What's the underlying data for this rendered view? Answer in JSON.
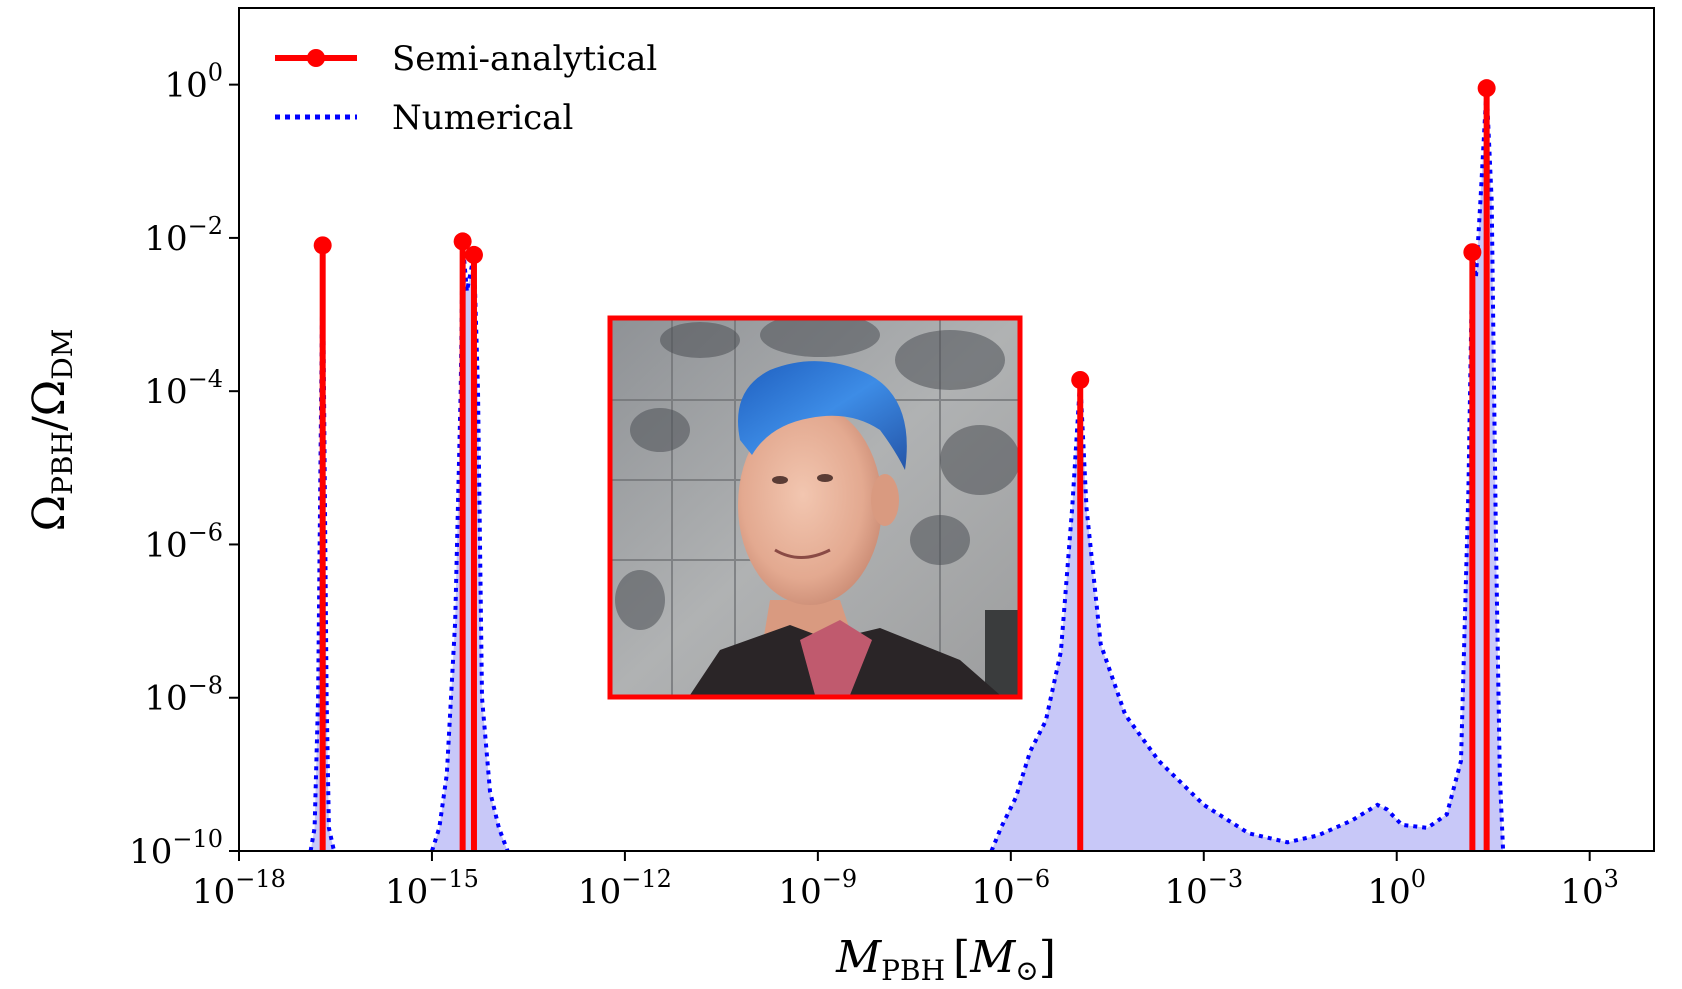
{
  "chart_data": {
    "type": "line",
    "xscale": "log",
    "yscale": "log",
    "xlim": [
      1e-18,
      10000.0
    ],
    "ylim": [
      1e-10,
      10
    ],
    "grid": false,
    "legend_position": "top-left",
    "xlabel": {
      "main": "M",
      "sub": "PBH",
      "unit_open": "[",
      "unit_main": "M",
      "unit_sub": "⊙",
      "unit_close": "]"
    },
    "ylabel": {
      "num_main": "Ω",
      "num_sub": "PBH",
      "slash": "/",
      "den_main": "Ω",
      "den_sub": "DM"
    },
    "x_ticks": [
      {
        "base": "10",
        "exp": "−18",
        "value": 1e-18
      },
      {
        "base": "10",
        "exp": "−15",
        "value": 1e-15
      },
      {
        "base": "10",
        "exp": "−12",
        "value": 1e-12
      },
      {
        "base": "10",
        "exp": "−9",
        "value": 1e-09
      },
      {
        "base": "10",
        "exp": "−6",
        "value": 1e-06
      },
      {
        "base": "10",
        "exp": "−3",
        "value": 0.001
      },
      {
        "base": "10",
        "exp": "0",
        "value": 1
      },
      {
        "base": "10",
        "exp": "3",
        "value": 1000.0
      }
    ],
    "y_ticks": [
      {
        "base": "10",
        "exp": "0",
        "value": 1
      },
      {
        "base": "10",
        "exp": "−2",
        "value": 0.01
      },
      {
        "base": "10",
        "exp": "−4",
        "value": 0.0001
      },
      {
        "base": "10",
        "exp": "−6",
        "value": 1e-06
      },
      {
        "base": "10",
        "exp": "−8",
        "value": 1e-08
      },
      {
        "base": "10",
        "exp": "−10",
        "value": 1e-10
      }
    ],
    "series": [
      {
        "name": "Semi-analytical",
        "style": "stem",
        "color": "#ff0000",
        "points": [
          {
            "x": 2e-17,
            "y": 0.008
          },
          {
            "x": 3e-15,
            "y": 0.009
          },
          {
            "x": 4.5e-15,
            "y": 0.006
          },
          {
            "x": 1.2e-05,
            "y": 0.00014
          },
          {
            "x": 15,
            "y": 0.0065
          },
          {
            "x": 25,
            "y": 0.9
          }
        ]
      },
      {
        "name": "Numerical",
        "style": "dotted-filled",
        "color": "#0000ff",
        "fill": "#c8c8f8",
        "points": [
          {
            "x": 1.3e-17,
            "y": 1e-10
          },
          {
            "x": 1.5e-17,
            "y": 2e-10
          },
          {
            "x": 1.7e-17,
            "y": 1e-08
          },
          {
            "x": 1.9e-17,
            "y": 0.0001
          },
          {
            "x": 2e-17,
            "y": 0.008
          },
          {
            "x": 2.1e-17,
            "y": 0.0001
          },
          {
            "x": 2.3e-17,
            "y": 1e-08
          },
          {
            "x": 2.5e-17,
            "y": 2e-10
          },
          {
            "x": 3e-17,
            "y": 1e-10
          },
          {
            "x": 1e-15,
            "y": 1e-10
          },
          {
            "x": 1.3e-15,
            "y": 2e-10
          },
          {
            "x": 1.7e-15,
            "y": 1e-09
          },
          {
            "x": 2.3e-15,
            "y": 1e-07
          },
          {
            "x": 2.8e-15,
            "y": 0.0001
          },
          {
            "x": 3e-15,
            "y": 0.009
          },
          {
            "x": 3.5e-15,
            "y": 0.002
          },
          {
            "x": 4.5e-15,
            "y": 0.006
          },
          {
            "x": 5.2e-15,
            "y": 0.0001
          },
          {
            "x": 6e-15,
            "y": 1e-08
          },
          {
            "x": 8e-15,
            "y": 6e-10
          },
          {
            "x": 1.1e-14,
            "y": 2e-10
          },
          {
            "x": 1.5e-14,
            "y": 1e-10
          },
          {
            "x": 5e-07,
            "y": 1e-10
          },
          {
            "x": 7e-07,
            "y": 2e-10
          },
          {
            "x": 1.2e-06,
            "y": 5e-10
          },
          {
            "x": 2e-06,
            "y": 2e-09
          },
          {
            "x": 3.5e-06,
            "y": 5e-09
          },
          {
            "x": 6e-06,
            "y": 4e-08
          },
          {
            "x": 9e-06,
            "y": 3e-06
          },
          {
            "x": 1.2e-05,
            "y": 0.00014
          },
          {
            "x": 1.5e-05,
            "y": 3e-06
          },
          {
            "x": 2.5e-05,
            "y": 5e-08
          },
          {
            "x": 6e-05,
            "y": 6e-09
          },
          {
            "x": 0.0002,
            "y": 1.5e-09
          },
          {
            "x": 0.001,
            "y": 4e-10
          },
          {
            "x": 0.005,
            "y": 1.7e-10
          },
          {
            "x": 0.02,
            "y": 1.3e-10
          },
          {
            "x": 0.06,
            "y": 1.6e-10
          },
          {
            "x": 0.2,
            "y": 2.5e-10
          },
          {
            "x": 0.5,
            "y": 4e-10
          },
          {
            "x": 0.7,
            "y": 3.5e-10
          },
          {
            "x": 1.2,
            "y": 2.2e-10
          },
          {
            "x": 3.0,
            "y": 2e-10
          },
          {
            "x": 6.0,
            "y": 3e-10
          },
          {
            "x": 10,
            "y": 1.5e-09
          },
          {
            "x": 13,
            "y": 5e-06
          },
          {
            "x": 15,
            "y": 0.0065
          },
          {
            "x": 17,
            "y": 0.003
          },
          {
            "x": 20,
            "y": 0.03
          },
          {
            "x": 25,
            "y": 0.9
          },
          {
            "x": 30,
            "y": 0.03
          },
          {
            "x": 35,
            "y": 1e-06
          },
          {
            "x": 40,
            "y": 1e-09
          },
          {
            "x": 45,
            "y": 1e-10
          }
        ]
      }
    ]
  },
  "legend": {
    "semi_label": "Semi-analytical",
    "num_label": "Numerical"
  },
  "inset": {
    "kind": "photo",
    "subject": "person with blue hair",
    "border_color": "#ff0000"
  }
}
